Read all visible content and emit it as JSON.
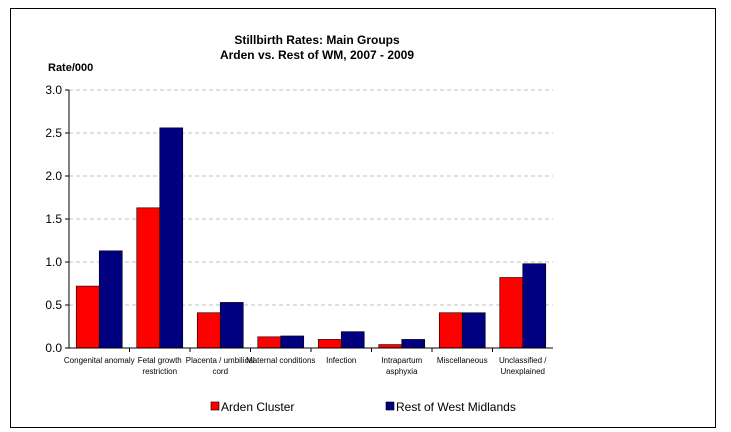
{
  "chart_data": {
    "type": "bar",
    "title": "Stillbirth Rates: Main Groups",
    "subtitle": "Arden vs. Rest of WM, 2007 - 2009",
    "ylabel": "Rate/000",
    "xlabel": "",
    "ylim": [
      0,
      3.0
    ],
    "yticks": [
      "0.0",
      "0.5",
      "1.0",
      "1.5",
      "2.0",
      "2.5",
      "3.0"
    ],
    "grid": true,
    "legend_position": "bottom",
    "categories": [
      [
        "Congenital anomaly"
      ],
      [
        "Fetal growth",
        "restriction"
      ],
      [
        "Placenta / umbilical",
        "cord"
      ],
      [
        "Maternal conditions"
      ],
      [
        "Infection"
      ],
      [
        "Intrapartum",
        "asphyxia"
      ],
      [
        "Miscellaneous"
      ],
      [
        "Unclassified /",
        "Unexplained"
      ]
    ],
    "series": [
      {
        "name": "Arden Cluster",
        "color": "#ff0000",
        "values": [
          0.72,
          1.63,
          0.41,
          0.13,
          0.1,
          0.04,
          0.41,
          0.82
        ]
      },
      {
        "name": "Rest of West Midlands",
        "color": "#000080",
        "values": [
          1.13,
          2.56,
          0.53,
          0.14,
          0.19,
          0.1,
          0.41,
          0.98
        ]
      }
    ]
  }
}
